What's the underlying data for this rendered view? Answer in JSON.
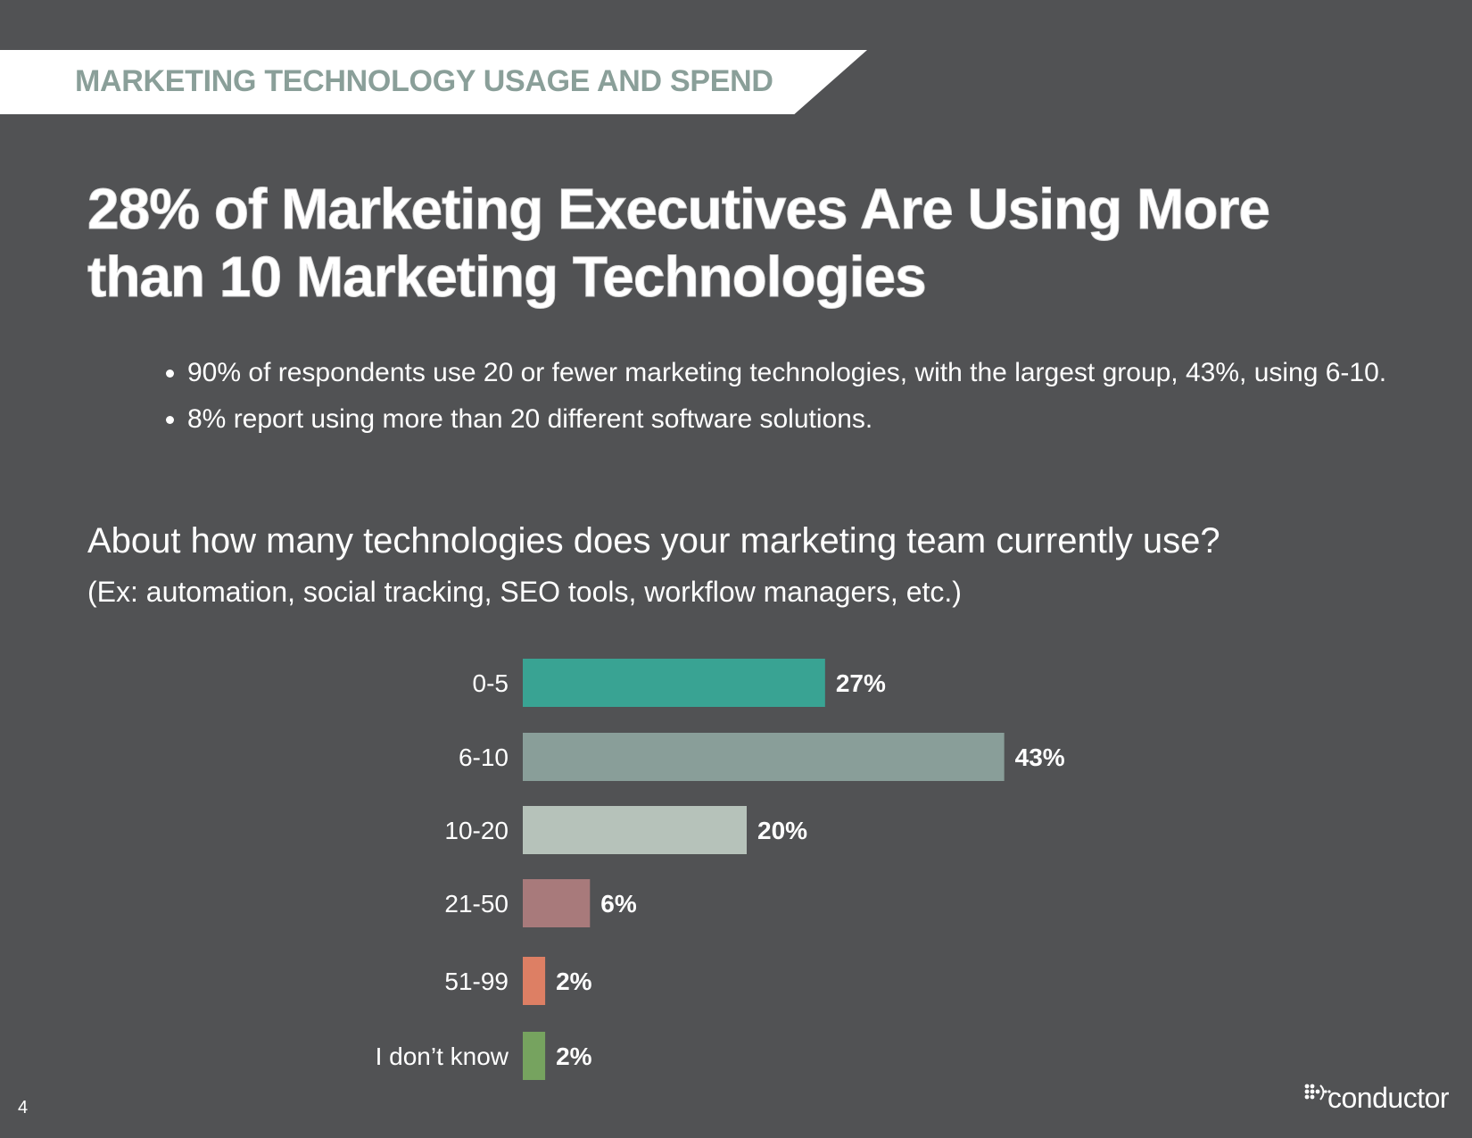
{
  "header": {
    "section_title": "MARKETING TECHNOLOGY USAGE AND SPEND",
    "headline_line1": "28% of Marketing Executives Are Using More",
    "headline_line2": "than 10 Marketing Technologies"
  },
  "bullets": [
    "90% of respondents use 20 or fewer marketing technologies, with the largest group, 43%, using 6-10.",
    "8% report using more than 20 different software solutions."
  ],
  "question": {
    "text": "About how many technologies does your marketing team currently use?",
    "example": "(Ex: automation, social tracking, SEO tools, workflow managers, etc.)"
  },
  "chart_data": {
    "type": "bar",
    "orientation": "horizontal",
    "title": "",
    "xlabel": "",
    "ylabel": "",
    "grid": false,
    "categories": [
      "0-5",
      "6-10",
      "10-20",
      "21-50",
      "51-99",
      "I don’t know"
    ],
    "values": [
      27,
      43,
      20,
      6,
      2,
      2
    ],
    "value_labels": [
      "27%",
      "43%",
      "20%",
      "6%",
      "2%",
      "2%"
    ],
    "colors": [
      "#39a393",
      "#899e99",
      "#b6c2ba",
      "#a87a7b",
      "#dd7f64",
      "#76a35f"
    ]
  },
  "footer": {
    "page_number": "4",
    "logo_text": "conductor"
  }
}
